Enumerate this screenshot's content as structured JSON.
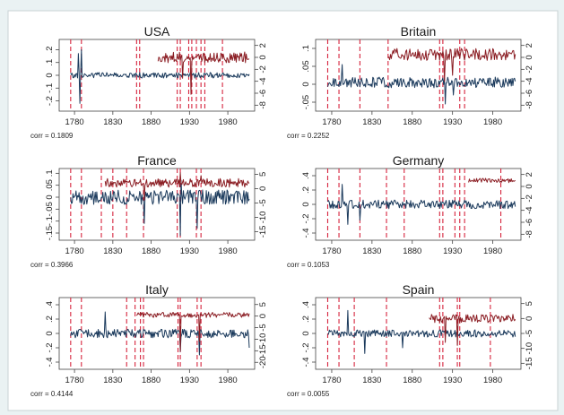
{
  "chart_data": [
    {
      "type": "line",
      "title": "USA",
      "corr_label": "corr =  0.1809",
      "x_ticks": [
        1780,
        1830,
        1880,
        1930,
        1980
      ],
      "xlim": [
        1760,
        2015
      ],
      "left_axis": {
        "ticks": [
          0.2,
          0.1,
          0,
          -0.1,
          -0.2
        ],
        "tick_labels": [
          ".2",
          ".1",
          "0",
          "-.1",
          "-.2"
        ],
        "range": [
          -0.28,
          0.28
        ]
      },
      "right_axis": {
        "ticks": [
          2,
          0,
          -2,
          -4,
          -6,
          -8
        ],
        "tick_labels": [
          "2",
          "0",
          "-2",
          "-4",
          "-6",
          "-8"
        ],
        "range": [
          -9,
          3
        ]
      },
      "vlines": [
        1775,
        1789,
        1861,
        1865,
        1914,
        1918,
        1929,
        1933,
        1939,
        1945,
        1950,
        1973
      ],
      "series": [
        {
          "color": "#1b3a5c",
          "axis": "left",
          "x_range": [
            1775,
            2008
          ],
          "level": 0.0,
          "noise": 0.022,
          "seed": 11,
          "spikes": [
            [
              1787,
              -0.22
            ],
            [
              1789,
              0.2
            ],
            [
              1785,
              0.17
            ]
          ]
        },
        {
          "color": "#8b1e24",
          "axis": "right",
          "x_range": [
            1889,
            2008
          ],
          "level": 0.0,
          "noise": 0.9,
          "seed": 12,
          "spikes": [
            [
              1921,
              -3.5
            ],
            [
              1932,
              -6.2
            ]
          ]
        }
      ]
    },
    {
      "type": "line",
      "title": "Britain",
      "corr_label": "corr =  0.2252",
      "x_ticks": [
        1780,
        1830,
        1880,
        1930,
        1980
      ],
      "xlim": [
        1760,
        2015
      ],
      "left_axis": {
        "ticks": [
          0.1,
          0.05,
          0,
          -0.05
        ],
        "tick_labels": [
          ".1",
          ".05",
          "0",
          "-.05"
        ],
        "range": [
          -0.075,
          0.125
        ]
      },
      "right_axis": {
        "ticks": [
          2,
          0,
          -2,
          -4,
          -6,
          -8
        ],
        "tick_labels": [
          "2",
          "0",
          "-2",
          "-4",
          "-6",
          "-8"
        ],
        "range": [
          -9,
          3
        ]
      },
      "vlines": [
        1775,
        1789,
        1815,
        1850,
        1914,
        1918,
        1939,
        1945
      ],
      "series": [
        {
          "color": "#1b3a5c",
          "axis": "left",
          "x_range": [
            1775,
            2008
          ],
          "level": 0.005,
          "noise": 0.015,
          "seed": 21,
          "spikes": [
            [
              1793,
              0.055
            ],
            [
              1921,
              -0.055
            ],
            [
              1931,
              -0.03
            ]
          ]
        },
        {
          "color": "#8b1e24",
          "axis": "right",
          "x_range": [
            1850,
            2008
          ],
          "level": 0.5,
          "noise": 1.0,
          "seed": 22,
          "spikes": [
            [
              1920,
              -4
            ],
            [
              1930,
              -3
            ]
          ]
        }
      ]
    },
    {
      "type": "line",
      "title": "France",
      "corr_label": "corr =  0.3966",
      "x_ticks": [
        1780,
        1830,
        1880,
        1930,
        1980
      ],
      "xlim": [
        1760,
        2015
      ],
      "left_axis": {
        "ticks": [
          0.1,
          0.05,
          0,
          -0.05,
          -0.1,
          -0.15
        ],
        "tick_labels": [
          ".1",
          ".05",
          "0",
          "-.05",
          "-.1",
          "-.15"
        ],
        "range": [
          -0.18,
          0.12
        ]
      },
      "right_axis": {
        "ticks": [
          5,
          0,
          -5,
          -10,
          -15
        ],
        "tick_labels": [
          "5",
          "0",
          "-5",
          "-10",
          "-15"
        ],
        "range": [
          -18,
          7
        ]
      },
      "vlines": [
        1775,
        1789,
        1815,
        1830,
        1848,
        1870,
        1914,
        1918,
        1939,
        1945
      ],
      "series": [
        {
          "color": "#1b3a5c",
          "axis": "left",
          "x_range": [
            1775,
            2008
          ],
          "level": 0.0,
          "noise": 0.03,
          "seed": 31,
          "spikes": [
            [
              1871,
              -0.11
            ],
            [
              1940,
              -0.13
            ],
            [
              1918,
              -0.16
            ],
            [
              1919,
              0.07
            ]
          ]
        },
        {
          "color": "#8b1e24",
          "axis": "right",
          "x_range": [
            1820,
            2008
          ],
          "level": 2.0,
          "noise": 1.5,
          "seed": 32,
          "spikes": [
            [
              1918,
              5.5
            ],
            [
              1945,
              4.5
            ],
            [
              1871,
              -4
            ]
          ]
        }
      ]
    },
    {
      "type": "line",
      "title": "Germany",
      "corr_label": "corr =  0.1053",
      "x_ticks": [
        1780,
        1830,
        1880,
        1930,
        1980
      ],
      "xlim": [
        1760,
        2015
      ],
      "left_axis": {
        "ticks": [
          0.4,
          0.2,
          0,
          -0.2,
          -0.4
        ],
        "tick_labels": [
          ".4",
          ".2",
          "0",
          "-.2",
          "-.4"
        ],
        "range": [
          -0.5,
          0.5
        ]
      },
      "right_axis": {
        "ticks": [
          2,
          0,
          -2,
          -4,
          -6,
          -8
        ],
        "tick_labels": [
          "2",
          "0",
          "-2",
          "-4",
          "-6",
          "-8"
        ],
        "range": [
          -9,
          3
        ]
      },
      "vlines": [
        1775,
        1789,
        1815,
        1848,
        1870,
        1914,
        1918,
        1933,
        1939,
        1945,
        1990
      ],
      "series": [
        {
          "color": "#1b3a5c",
          "axis": "left",
          "x_range": [
            1775,
            2008
          ],
          "level": 0.0,
          "noise": 0.06,
          "seed": 41,
          "spikes": [
            [
              1793,
              0.28
            ],
            [
              1800,
              -0.28
            ],
            [
              1815,
              -0.22
            ]
          ]
        },
        {
          "color": "#8b1e24",
          "axis": "right",
          "x_range": [
            1950,
            2008
          ],
          "level": 1.0,
          "noise": 0.35,
          "seed": 42,
          "spikes": []
        }
      ]
    },
    {
      "type": "line",
      "title": "Italy",
      "corr_label": "corr =  0.4144",
      "x_ticks": [
        1780,
        1830,
        1880,
        1930,
        1980
      ],
      "xlim": [
        1760,
        2015
      ],
      "left_axis": {
        "ticks": [
          0.4,
          0.2,
          0,
          -0.2,
          -0.4
        ],
        "tick_labels": [
          ".4",
          ".2",
          "0",
          "-.2",
          "-.4"
        ],
        "range": [
          -0.5,
          0.5
        ]
      },
      "right_axis": {
        "ticks": [
          5,
          0,
          -5,
          -10,
          -15,
          -20
        ],
        "tick_labels": [
          "5",
          "0",
          "-5",
          "-10",
          "-15",
          "-20"
        ],
        "range": [
          -23,
          8
        ]
      },
      "vlines": [
        1775,
        1789,
        1848,
        1859,
        1866,
        1870,
        1915,
        1918,
        1940,
        1945
      ],
      "series": [
        {
          "color": "#1b3a5c",
          "axis": "left",
          "x_range": [
            1775,
            2008
          ],
          "level": 0.0,
          "noise": 0.06,
          "seed": 51,
          "spikes": [
            [
              1820,
              0.3
            ],
            [
              1918,
              -0.25
            ],
            [
              1943,
              -0.3
            ],
            [
              2008,
              -0.2
            ]
          ]
        },
        {
          "color": "#8b1e24",
          "axis": "right",
          "x_range": [
            1861,
            2008
          ],
          "level": 0.5,
          "noise": 1.1,
          "seed": 52,
          "spikes": [
            [
              1918,
              -15
            ],
            [
              1943,
              -11
            ]
          ]
        }
      ]
    },
    {
      "type": "line",
      "title": "Spain",
      "corr_label": "corr =  0.0055",
      "x_ticks": [
        1780,
        1830,
        1880,
        1930,
        1980
      ],
      "xlim": [
        1760,
        2015
      ],
      "left_axis": {
        "ticks": [
          0.4,
          0.2,
          0,
          -0.2,
          -0.4
        ],
        "tick_labels": [
          ".4",
          ".2",
          "0",
          "-.2",
          "-.4"
        ],
        "range": [
          -0.5,
          0.5
        ]
      },
      "right_axis": {
        "ticks": [
          5,
          0,
          -5,
          -10,
          -15
        ],
        "tick_labels": [
          "5",
          "0",
          "-5",
          "-10",
          "-15"
        ],
        "range": [
          -17,
          7
        ]
      },
      "vlines": [
        1775,
        1789,
        1808,
        1848,
        1914,
        1918,
        1936,
        1939,
        1977
      ],
      "series": [
        {
          "color": "#1b3a5c",
          "axis": "left",
          "x_range": [
            1775,
            2008
          ],
          "level": 0.0,
          "noise": 0.05,
          "seed": 61,
          "spikes": [
            [
              1800,
              0.32
            ],
            [
              1821,
              -0.28
            ],
            [
              1868,
              -0.2
            ]
          ]
        },
        {
          "color": "#8b1e24",
          "axis": "right",
          "x_range": [
            1901,
            2008
          ],
          "level": 0.0,
          "noise": 1.4,
          "seed": 62,
          "spikes": [
            [
              1921,
              -8
            ],
            [
              1936,
              -9
            ]
          ]
        }
      ]
    }
  ]
}
